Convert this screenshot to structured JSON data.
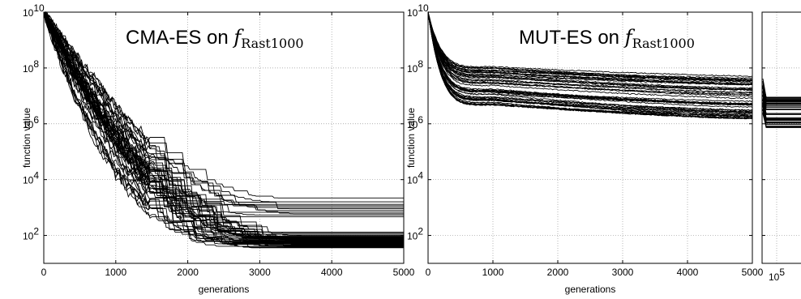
{
  "chart_data": [
    {
      "type": "line",
      "title": "CMA-ES on f_Rast1000",
      "title_parts": {
        "prefix": "CMA-ES on ",
        "func": "f",
        "sub": "Rast1000"
      },
      "xlabel": "generations",
      "ylabel": "function value",
      "y_scale": "log",
      "xlim": [
        0,
        5000
      ],
      "ylim": [
        10,
        10000000000
      ],
      "x_ticks": [
        "0",
        "1000",
        "2000",
        "3000",
        "4000",
        "5000"
      ],
      "y_ticks": [
        {
          "base": "10",
          "exp": "2"
        },
        {
          "base": "10",
          "exp": "4"
        },
        {
          "base": "10",
          "exp": "6"
        },
        {
          "base": "10",
          "exp": "8"
        },
        {
          "base": "10",
          "exp": "10"
        }
      ],
      "grid": true,
      "line_color": "#000000",
      "runs": 51,
      "start_value": 10000000000,
      "final_values": [
        2200,
        1600,
        1300,
        1150,
        1000,
        900,
        780,
        680,
        600,
        540,
        470,
        110,
        100,
        95,
        90,
        88,
        85,
        82,
        80,
        78,
        76,
        74,
        72,
        70,
        68,
        66,
        64,
        62,
        60,
        58,
        56,
        54,
        52,
        50,
        48,
        46,
        44,
        42,
        40,
        38,
        36,
        120,
        130,
        75,
        63,
        57,
        49,
        45,
        41,
        39,
        37
      ]
    },
    {
      "type": "line",
      "title": "MUT-ES on f_Rast1000",
      "title_parts": {
        "prefix": "MUT-ES on ",
        "func": "f",
        "sub": "Rast1000"
      },
      "xlabel": "generations",
      "ylabel": "function value",
      "y_scale": "log",
      "xlim": [
        0,
        5000
      ],
      "ylim": [
        10,
        10000000000
      ],
      "x_ticks": [
        "0",
        "1000",
        "2000",
        "3000",
        "4000",
        "5000"
      ],
      "y_ticks": [
        {
          "base": "10",
          "exp": "2"
        },
        {
          "base": "10",
          "exp": "4"
        },
        {
          "base": "10",
          "exp": "6"
        },
        {
          "base": "10",
          "exp": "8"
        },
        {
          "base": "10",
          "exp": "10"
        }
      ],
      "grid": true,
      "line_color": "#000000",
      "runs": 51,
      "start_value": 10000000000,
      "value_at_1000_range": [
        5000000,
        100000000
      ],
      "final_value_range": [
        1500000,
        45000000
      ]
    },
    {
      "type": "line",
      "title": "",
      "y_scale": "log",
      "ylim": [
        10,
        10000000000
      ],
      "x_tick_label": {
        "base": "10",
        "exp": "5"
      },
      "grid": true,
      "line_color": "#000000",
      "runs": 51,
      "value_range": [
        700000,
        9000000
      ]
    }
  ]
}
